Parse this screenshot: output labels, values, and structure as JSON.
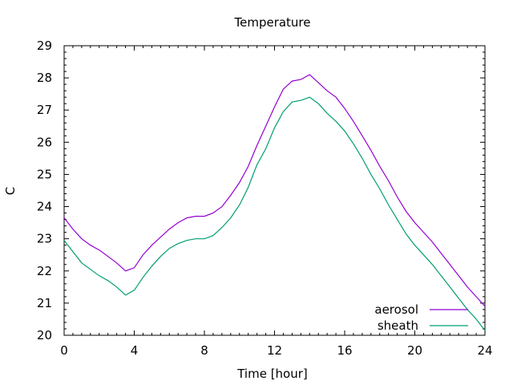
{
  "chart_data": {
    "type": "line",
    "title": "Temperature",
    "xlabel": "Time [hour]",
    "ylabel": "C",
    "xlim": [
      0,
      24
    ],
    "ylim": [
      20,
      29
    ],
    "xticks": [
      0,
      4,
      8,
      12,
      16,
      20,
      24
    ],
    "yticks": [
      20,
      21,
      22,
      23,
      24,
      25,
      26,
      27,
      28,
      29
    ],
    "grid": false,
    "legend_position": "bottom-right",
    "series": [
      {
        "name": "aerosol",
        "color": "#9400d3",
        "x": [
          0,
          0.5,
          1,
          1.5,
          2,
          2.5,
          3,
          3.5,
          4,
          4.5,
          5,
          5.5,
          6,
          6.5,
          7,
          7.5,
          8,
          8.5,
          9,
          9.5,
          10,
          10.5,
          11,
          11.5,
          12,
          12.5,
          13,
          13.5,
          14,
          14.5,
          15,
          15.5,
          16,
          16.5,
          17,
          17.5,
          18,
          18.5,
          19,
          19.5,
          20,
          20.5,
          21,
          21.5,
          22,
          22.5,
          23,
          23.5,
          24
        ],
        "y": [
          23.65,
          23.3,
          23.0,
          22.8,
          22.65,
          22.45,
          22.25,
          22.0,
          22.1,
          22.5,
          22.8,
          23.05,
          23.3,
          23.5,
          23.65,
          23.7,
          23.7,
          23.8,
          24.0,
          24.35,
          24.75,
          25.25,
          25.9,
          26.5,
          27.1,
          27.65,
          27.9,
          27.95,
          28.1,
          27.85,
          27.6,
          27.4,
          27.05,
          26.65,
          26.2,
          25.75,
          25.25,
          24.8,
          24.3,
          23.85,
          23.5,
          23.2,
          22.9,
          22.55,
          22.2,
          21.85,
          21.5,
          21.2,
          20.9
        ]
      },
      {
        "name": "sheath",
        "color": "#009e73",
        "x": [
          0,
          0.5,
          1,
          1.5,
          2,
          2.5,
          3,
          3.5,
          4,
          4.5,
          5,
          5.5,
          6,
          6.5,
          7,
          7.5,
          8,
          8.5,
          9,
          9.5,
          10,
          10.5,
          11,
          11.5,
          12,
          12.5,
          13,
          13.5,
          14,
          14.5,
          15,
          15.5,
          16,
          16.5,
          17,
          17.5,
          18,
          18.5,
          19,
          19.5,
          20,
          20.5,
          21,
          21.5,
          22,
          22.5,
          23,
          23.5,
          24
        ],
        "y": [
          22.95,
          22.6,
          22.25,
          22.05,
          21.85,
          21.7,
          21.5,
          21.25,
          21.4,
          21.8,
          22.15,
          22.45,
          22.7,
          22.85,
          22.95,
          23.0,
          23.0,
          23.1,
          23.35,
          23.65,
          24.05,
          24.6,
          25.3,
          25.8,
          26.45,
          26.95,
          27.25,
          27.3,
          27.4,
          27.2,
          26.9,
          26.65,
          26.35,
          25.95,
          25.5,
          25.0,
          24.55,
          24.05,
          23.6,
          23.15,
          22.8,
          22.5,
          22.2,
          21.85,
          21.5,
          21.15,
          20.8,
          20.5,
          20.15
        ]
      }
    ]
  }
}
